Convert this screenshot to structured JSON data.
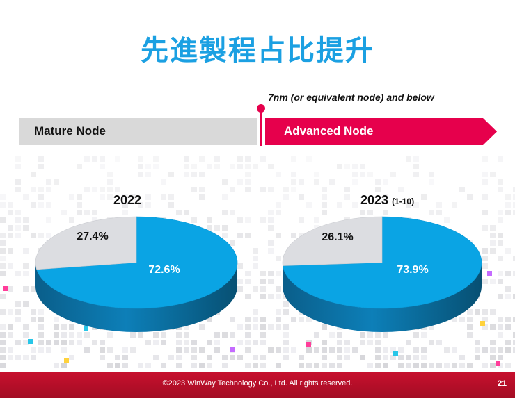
{
  "slide": {
    "title": "先進製程占比提升",
    "page_number": "21",
    "copyright": "©2023 WinWay Technology Co., Ltd. All rights reserved."
  },
  "nodes": {
    "mature_label": "Mature Node",
    "advanced_label": "Advanced Node",
    "threshold_note": "7nm (or equivalent node) and below"
  },
  "colors": {
    "title": "#1ba0e2",
    "advanced": "#e6004c",
    "mature_bar": "#d9d9d9",
    "pie_blue": "#0aa4e4",
    "pie_gray": "#dcdde1",
    "footer": "#b50f28"
  },
  "chart_data": [
    {
      "type": "pie",
      "title": "2022",
      "subtitle": "",
      "slices": [
        {
          "label": "Advanced Node",
          "value": 72.6,
          "display": "72.6%"
        },
        {
          "label": "Mature Node",
          "value": 27.4,
          "display": "27.4%"
        }
      ]
    },
    {
      "type": "pie",
      "title": "2023",
      "subtitle": "(1-10)",
      "slices": [
        {
          "label": "Advanced Node",
          "value": 73.9,
          "display": "73.9%"
        },
        {
          "label": "Mature Node",
          "value": 26.1,
          "display": "26.1%"
        }
      ]
    }
  ]
}
